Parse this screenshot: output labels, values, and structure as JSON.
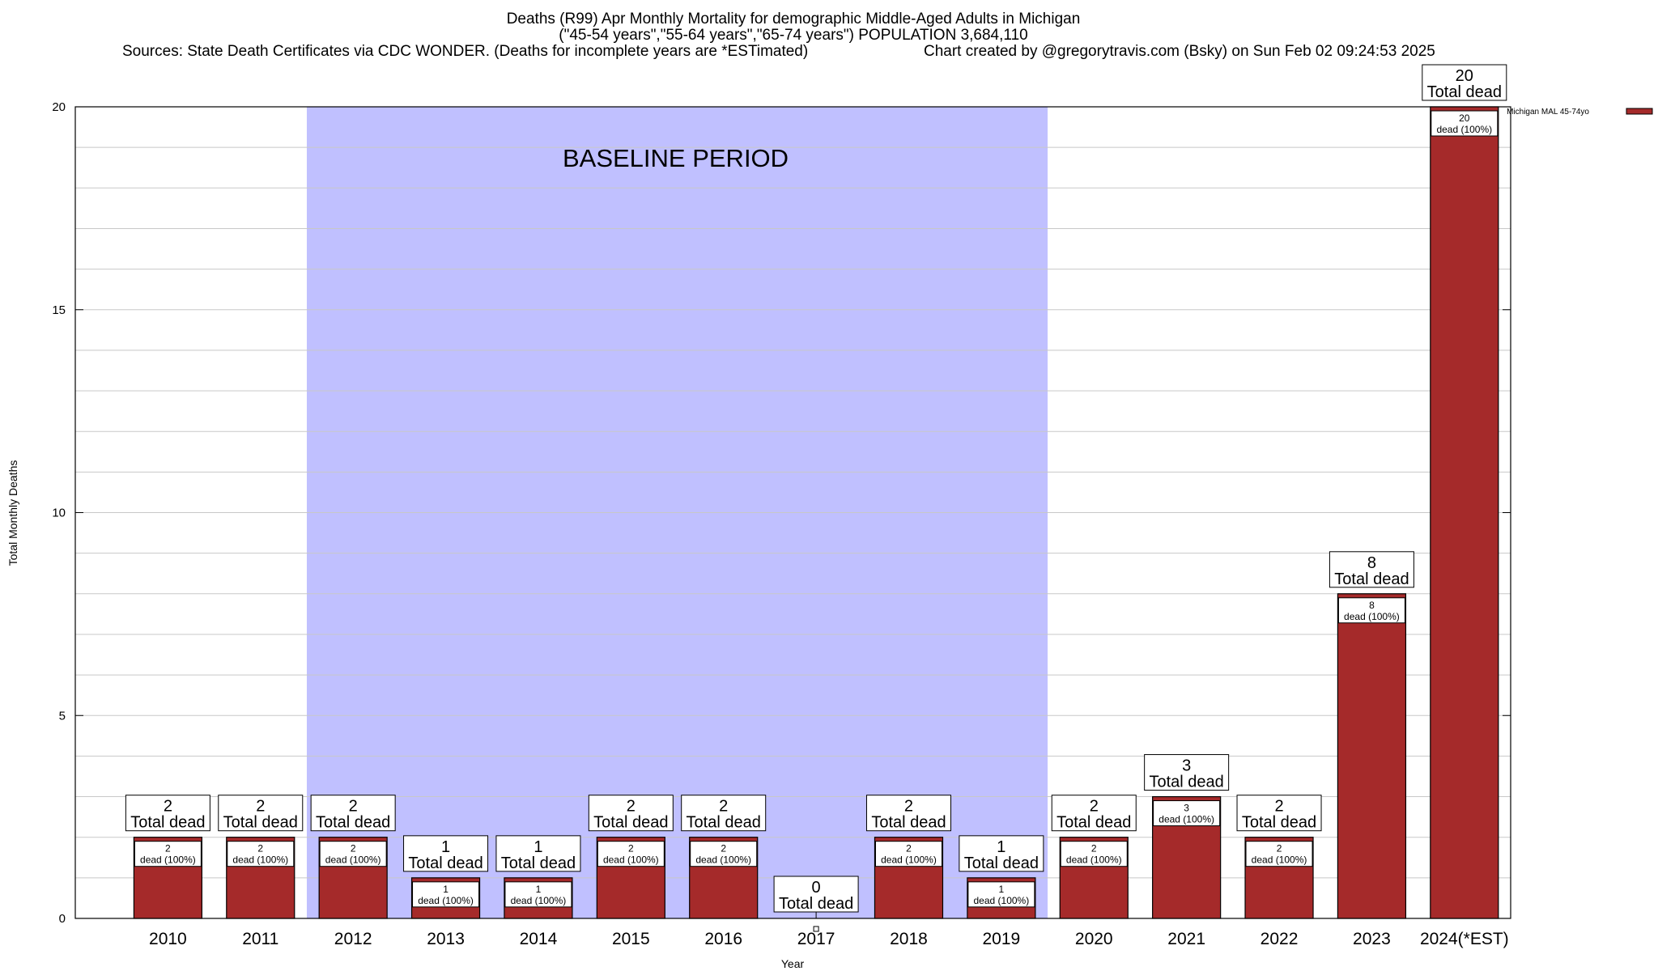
{
  "header": {
    "title": "Deaths (R99) Apr Monthly Mortality for demographic Middle-Aged Adults in Michigan",
    "subtitle": "(\"45-54 years\",\"55-64 years\",\"65-74 years\") POPULATION 3,684,110",
    "sources": "Sources: State Death Certificates via CDC WONDER. (Deaths for incomplete years are *ESTimated)",
    "credit": "Chart created by @gregorytravis.com (Bsky) on Sun Feb 02 09:24:53 2025"
  },
  "chart_data": {
    "type": "bar",
    "title": "Deaths (R99) Apr Monthly Mortality for demographic Middle-Aged Adults in Michigan",
    "xlabel": "Year",
    "ylabel": "Total Monthly Deaths",
    "ylim": [
      0,
      20
    ],
    "yticks": [
      0,
      5,
      10,
      15,
      20
    ],
    "grid": true,
    "legend_placement": "top-right",
    "categories": [
      "2010",
      "2011",
      "2012",
      "2013",
      "2014",
      "2015",
      "2016",
      "2017",
      "2018",
      "2019",
      "2020",
      "2021",
      "2022",
      "2023",
      "2024(*EST)"
    ],
    "series": [
      {
        "name": "Michigan MAL 45-74yo",
        "color": "#a52a2a",
        "values": [
          2,
          2,
          2,
          1,
          1,
          2,
          2,
          0,
          2,
          1,
          2,
          3,
          2,
          8,
          20
        ]
      }
    ],
    "total_label_suffix": "Total dead",
    "inner_label_suffix": "dead (100%)",
    "baseline": {
      "label": "BASELINE PERIOD",
      "from": "2012",
      "to": "2019",
      "color": "#c0c0ff"
    }
  }
}
